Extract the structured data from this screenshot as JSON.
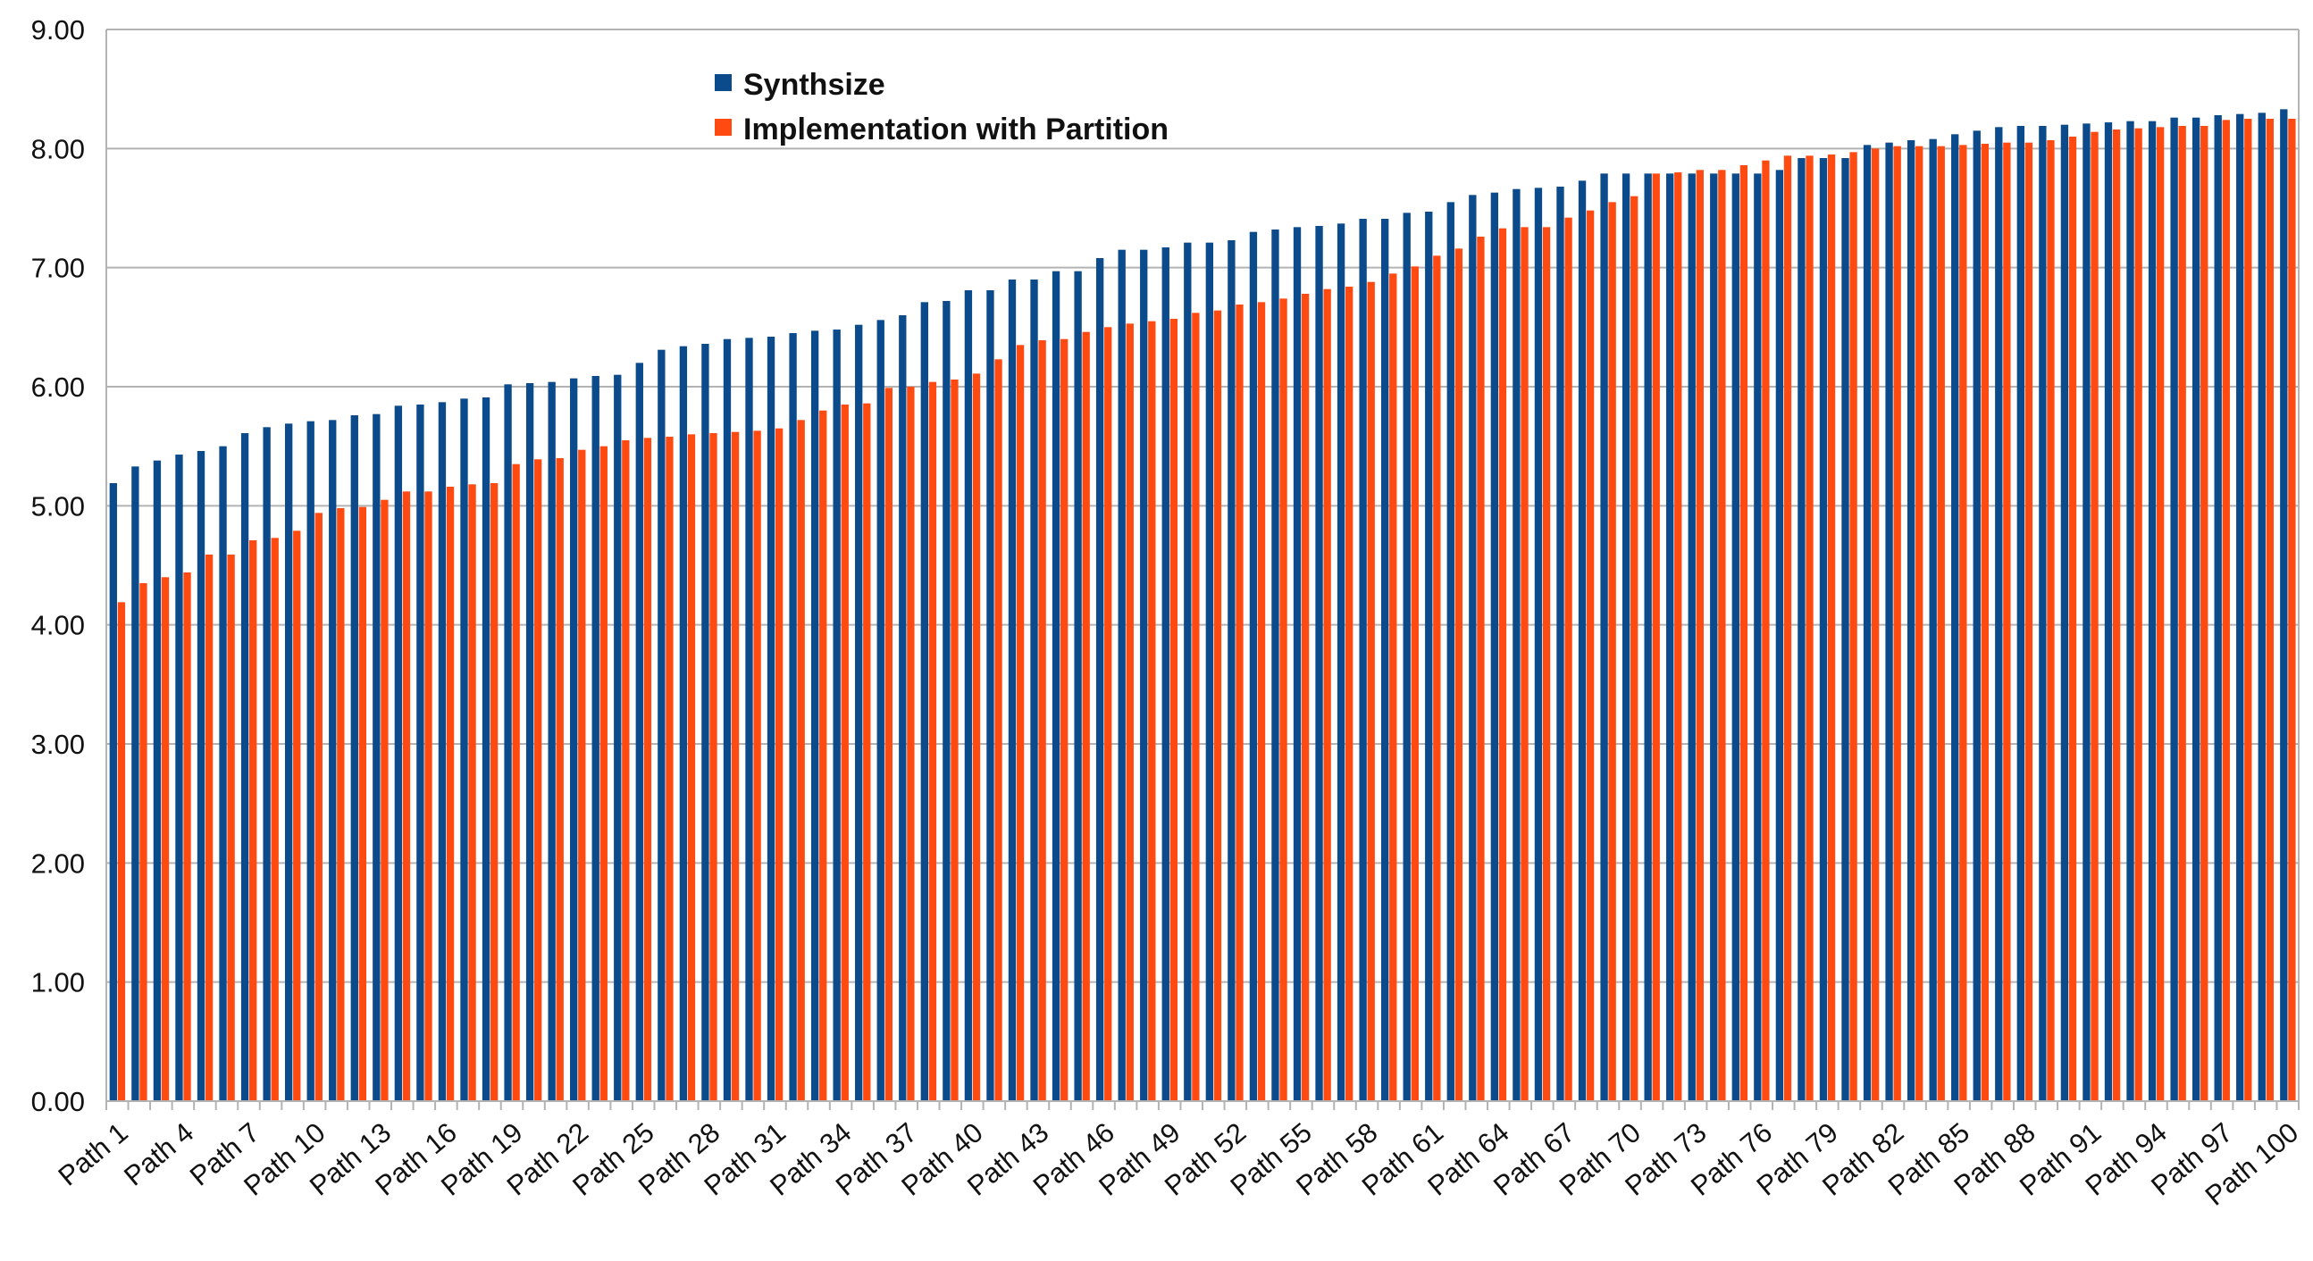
{
  "chart_data": {
    "type": "bar",
    "title": "",
    "xlabel": "",
    "ylabel": "",
    "ylim": [
      0,
      9
    ],
    "ytick_step": 1,
    "ytick_format": "0.00",
    "grid": "horizontal",
    "legend_position": "top-center",
    "xtick_label_every": 3,
    "colors": {
      "Synthsize": "#0b4a8b",
      "Implementation with Partition": "#ff4a12"
    },
    "categories": [
      "Path 1",
      "Path 2",
      "Path 3",
      "Path 4",
      "Path 5",
      "Path 6",
      "Path 7",
      "Path 8",
      "Path 9",
      "Path 10",
      "Path 11",
      "Path 12",
      "Path 13",
      "Path 14",
      "Path 15",
      "Path 16",
      "Path 17",
      "Path 18",
      "Path 19",
      "Path 20",
      "Path 21",
      "Path 22",
      "Path 23",
      "Path 24",
      "Path 25",
      "Path 26",
      "Path 27",
      "Path 28",
      "Path 29",
      "Path 30",
      "Path 31",
      "Path 32",
      "Path 33",
      "Path 34",
      "Path 35",
      "Path 36",
      "Path 37",
      "Path 38",
      "Path 39",
      "Path 40",
      "Path 41",
      "Path 42",
      "Path 43",
      "Path 44",
      "Path 45",
      "Path 46",
      "Path 47",
      "Path 48",
      "Path 49",
      "Path 50",
      "Path 51",
      "Path 52",
      "Path 53",
      "Path 54",
      "Path 55",
      "Path 56",
      "Path 57",
      "Path 58",
      "Path 59",
      "Path 60",
      "Path 61",
      "Path 62",
      "Path 63",
      "Path 64",
      "Path 65",
      "Path 66",
      "Path 67",
      "Path 68",
      "Path 69",
      "Path 70",
      "Path 71",
      "Path 72",
      "Path 73",
      "Path 74",
      "Path 75",
      "Path 76",
      "Path 77",
      "Path 78",
      "Path 79",
      "Path 80",
      "Path 81",
      "Path 82",
      "Path 83",
      "Path 84",
      "Path 85",
      "Path 86",
      "Path 87",
      "Path 88",
      "Path 89",
      "Path 90",
      "Path 91",
      "Path 92",
      "Path 93",
      "Path 94",
      "Path 95",
      "Path 96",
      "Path 97",
      "Path 98",
      "Path 99",
      "Path 100"
    ],
    "series": [
      {
        "name": "Synthsize",
        "values": [
          5.19,
          5.33,
          5.38,
          5.43,
          5.46,
          5.5,
          5.61,
          5.66,
          5.69,
          5.71,
          5.72,
          5.76,
          5.77,
          5.84,
          5.85,
          5.87,
          5.9,
          5.91,
          6.02,
          6.03,
          6.04,
          6.07,
          6.09,
          6.1,
          6.2,
          6.31,
          6.34,
          6.36,
          6.4,
          6.41,
          6.42,
          6.45,
          6.47,
          6.48,
          6.52,
          6.56,
          6.6,
          6.71,
          6.72,
          6.81,
          6.81,
          6.9,
          6.9,
          6.97,
          6.97,
          7.08,
          7.15,
          7.15,
          7.17,
          7.21,
          7.21,
          7.23,
          7.3,
          7.32,
          7.34,
          7.35,
          7.37,
          7.41,
          7.41,
          7.46,
          7.47,
          7.55,
          7.61,
          7.63,
          7.66,
          7.67,
          7.68,
          7.73,
          7.79,
          7.79,
          7.79,
          7.79,
          7.79,
          7.79,
          7.79,
          7.79,
          7.82,
          7.92,
          7.92,
          7.92,
          8.03,
          8.05,
          8.07,
          8.08,
          8.12,
          8.15,
          8.18,
          8.19,
          8.19,
          8.2,
          8.21,
          8.22,
          8.23,
          8.23,
          8.26,
          8.26,
          8.28,
          8.29,
          8.3,
          8.33
        ]
      },
      {
        "name": "Implementation with Partition",
        "values": [
          4.19,
          4.35,
          4.4,
          4.44,
          4.59,
          4.59,
          4.71,
          4.73,
          4.79,
          4.94,
          4.98,
          4.99,
          5.05,
          5.12,
          5.12,
          5.16,
          5.18,
          5.19,
          5.35,
          5.39,
          5.4,
          5.47,
          5.5,
          5.55,
          5.57,
          5.58,
          5.6,
          5.61,
          5.62,
          5.63,
          5.65,
          5.72,
          5.8,
          5.85,
          5.86,
          5.99,
          6.0,
          6.04,
          6.06,
          6.11,
          6.23,
          6.35,
          6.39,
          6.4,
          6.46,
          6.5,
          6.53,
          6.55,
          6.57,
          6.62,
          6.64,
          6.69,
          6.71,
          6.74,
          6.78,
          6.82,
          6.84,
          6.88,
          6.95,
          7.01,
          7.1,
          7.16,
          7.26,
          7.33,
          7.34,
          7.34,
          7.42,
          7.48,
          7.55,
          7.6,
          7.79,
          7.8,
          7.82,
          7.82,
          7.86,
          7.9,
          7.94,
          7.94,
          7.95,
          7.97,
          8.0,
          8.02,
          8.02,
          8.02,
          8.03,
          8.04,
          8.05,
          8.05,
          8.07,
          8.1,
          8.14,
          8.16,
          8.17,
          8.18,
          8.19,
          8.19,
          8.24,
          8.25,
          8.25,
          8.25
        ]
      }
    ]
  }
}
